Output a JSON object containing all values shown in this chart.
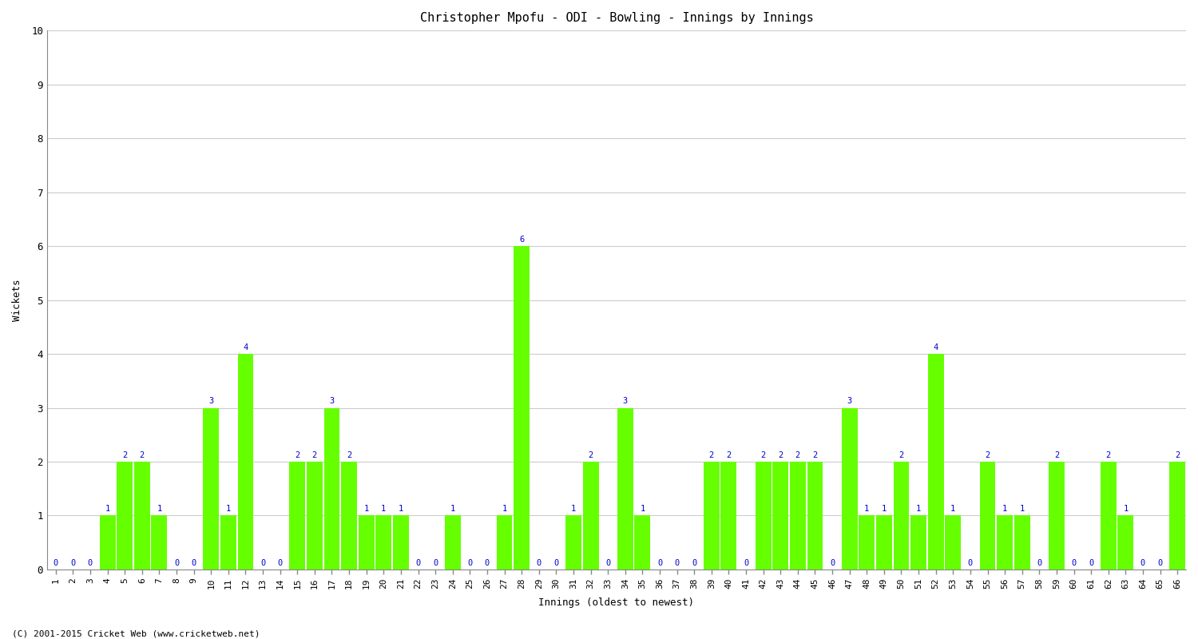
{
  "title": "Christopher Mpofu - ODI - Bowling - Innings by Innings",
  "xlabel": "Innings (oldest to newest)",
  "ylabel": "Wickets",
  "ylim": [
    0,
    10
  ],
  "yticks": [
    0,
    1,
    2,
    3,
    4,
    5,
    6,
    7,
    8,
    9,
    10
  ],
  "bar_color": "#66ff00",
  "label_color": "#0000cc",
  "background_color": "#ffffff",
  "footer": "(C) 2001-2015 Cricket Web (www.cricketweb.net)",
  "innings_labels": [
    "1",
    "2",
    "3",
    "4",
    "5",
    "6",
    "7",
    "8",
    "9",
    "10",
    "11",
    "12",
    "13",
    "14",
    "15",
    "16",
    "17",
    "18",
    "19",
    "20",
    "21",
    "22",
    "23",
    "24",
    "25",
    "26",
    "27",
    "28",
    "29",
    "30",
    "31",
    "32",
    "33",
    "34",
    "35",
    "36",
    "37",
    "38",
    "39",
    "40",
    "41",
    "42",
    "43",
    "44",
    "45",
    "46",
    "47",
    "48",
    "49",
    "50",
    "51",
    "52",
    "53",
    "54",
    "55",
    "56",
    "57",
    "58",
    "59",
    "60",
    "61",
    "62",
    "63",
    "64",
    "65",
    "66"
  ],
  "wickets": [
    0,
    0,
    0,
    1,
    2,
    2,
    1,
    0,
    0,
    3,
    1,
    4,
    0,
    0,
    2,
    2,
    3,
    2,
    1,
    1,
    1,
    0,
    0,
    1,
    0,
    0,
    1,
    6,
    0,
    0,
    1,
    2,
    0,
    3,
    1,
    0,
    0,
    0,
    2,
    2,
    0,
    2,
    2,
    2,
    2,
    0,
    3,
    1,
    1,
    2,
    1,
    4,
    1,
    0,
    2,
    1,
    1,
    0,
    2,
    0,
    0,
    2,
    1,
    0,
    0,
    2
  ]
}
